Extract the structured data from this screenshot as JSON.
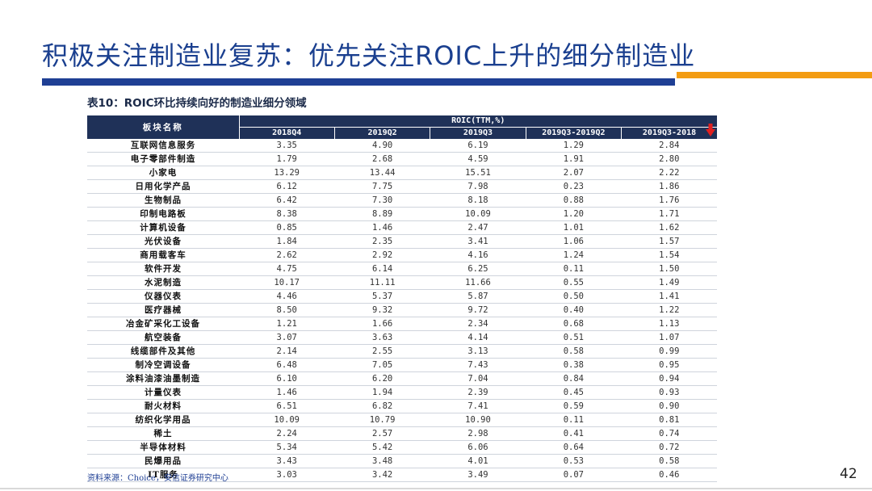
{
  "slide": {
    "title": "积极关注制造业复苏：优先关注ROIC上升的细分制造业",
    "table_caption": "表10：ROIC环比持续向好的制造业细分领域",
    "source": "资料来源：Choice，安信证券研究中心",
    "page_number": "42",
    "accent_colors": {
      "title": "#1a3f8f",
      "blue_bar": "#1f3f94",
      "orange_bar": "#f39c12",
      "table_header": "#1f3158",
      "arrow": "#e02020"
    }
  },
  "table": {
    "row_header": "板块名称",
    "group_header": "ROIC(TTM,%)",
    "columns": [
      "2018Q4",
      "2019Q2",
      "2019Q3",
      "2019Q3-2019Q2",
      "2019Q3-2018"
    ],
    "sort_indicator_icon": "down-arrow-icon",
    "rows": [
      {
        "name": "互联网信息服务",
        "values": [
          "3.35",
          "4.90",
          "6.19",
          "1.29",
          "2.84"
        ]
      },
      {
        "name": "电子零部件制造",
        "values": [
          "1.79",
          "2.68",
          "4.59",
          "1.91",
          "2.80"
        ]
      },
      {
        "name": "小家电",
        "values": [
          "13.29",
          "13.44",
          "15.51",
          "2.07",
          "2.22"
        ]
      },
      {
        "name": "日用化学产品",
        "values": [
          "6.12",
          "7.75",
          "7.98",
          "0.23",
          "1.86"
        ]
      },
      {
        "name": "生物制品",
        "values": [
          "6.42",
          "7.30",
          "8.18",
          "0.88",
          "1.76"
        ]
      },
      {
        "name": "印制电路板",
        "values": [
          "8.38",
          "8.89",
          "10.09",
          "1.20",
          "1.71"
        ]
      },
      {
        "name": "计算机设备",
        "values": [
          "0.85",
          "1.46",
          "2.47",
          "1.01",
          "1.62"
        ]
      },
      {
        "name": "光伏设备",
        "values": [
          "1.84",
          "2.35",
          "3.41",
          "1.06",
          "1.57"
        ]
      },
      {
        "name": "商用载客车",
        "values": [
          "2.62",
          "2.92",
          "4.16",
          "1.24",
          "1.54"
        ]
      },
      {
        "name": "软件开发",
        "values": [
          "4.75",
          "6.14",
          "6.25",
          "0.11",
          "1.50"
        ]
      },
      {
        "name": "水泥制造",
        "values": [
          "10.17",
          "11.11",
          "11.66",
          "0.55",
          "1.49"
        ]
      },
      {
        "name": "仪器仪表",
        "values": [
          "4.46",
          "5.37",
          "5.87",
          "0.50",
          "1.41"
        ]
      },
      {
        "name": "医疗器械",
        "values": [
          "8.50",
          "9.32",
          "9.72",
          "0.40",
          "1.22"
        ]
      },
      {
        "name": "冶金矿采化工设备",
        "values": [
          "1.21",
          "1.66",
          "2.34",
          "0.68",
          "1.13"
        ]
      },
      {
        "name": "航空装备",
        "values": [
          "3.07",
          "3.63",
          "4.14",
          "0.51",
          "1.07"
        ]
      },
      {
        "name": "线缆部件及其他",
        "values": [
          "2.14",
          "2.55",
          "3.13",
          "0.58",
          "0.99"
        ]
      },
      {
        "name": "制冷空调设备",
        "values": [
          "6.48",
          "7.05",
          "7.43",
          "0.38",
          "0.95"
        ]
      },
      {
        "name": "涂料油漆油墨制造",
        "values": [
          "6.10",
          "6.20",
          "7.04",
          "0.84",
          "0.94"
        ]
      },
      {
        "name": "计量仪表",
        "values": [
          "1.46",
          "1.94",
          "2.39",
          "0.45",
          "0.93"
        ]
      },
      {
        "name": "耐火材料",
        "values": [
          "6.51",
          "6.82",
          "7.41",
          "0.59",
          "0.90"
        ]
      },
      {
        "name": "纺织化学用品",
        "values": [
          "10.09",
          "10.79",
          "10.90",
          "0.11",
          "0.81"
        ]
      },
      {
        "name": "稀土",
        "values": [
          "2.24",
          "2.57",
          "2.98",
          "0.41",
          "0.74"
        ]
      },
      {
        "name": "半导体材料",
        "values": [
          "5.34",
          "5.42",
          "6.06",
          "0.64",
          "0.72"
        ]
      },
      {
        "name": "民爆用品",
        "values": [
          "3.43",
          "3.48",
          "4.01",
          "0.53",
          "0.58"
        ]
      },
      {
        "name": "IT服务",
        "values": [
          "3.03",
          "3.42",
          "3.49",
          "0.07",
          "0.46"
        ]
      }
    ]
  }
}
